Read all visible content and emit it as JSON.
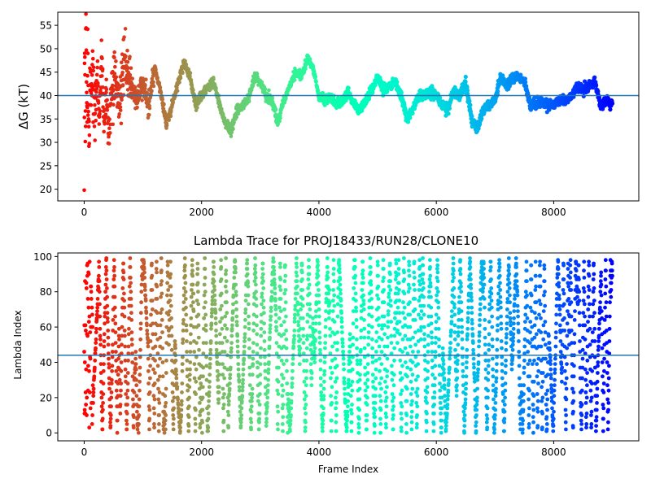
{
  "chart_data": [
    {
      "type": "scatter",
      "title": "",
      "xlabel": "",
      "ylabel": "ΔG (kT)",
      "xlim": [
        -450,
        9450
      ],
      "ylim": [
        17.5,
        57.8
      ],
      "xticks": [
        0,
        2000,
        4000,
        6000,
        8000
      ],
      "yticks": [
        20,
        25,
        30,
        35,
        40,
        45,
        50,
        55
      ],
      "hline": 40,
      "hline_color": "#1f77b4",
      "colormap": "rainbow (reversed: red at frame 0, violet at last frame)",
      "frames": [
        0,
        9000
      ],
      "trace_anchor_points": [
        [
          0,
          20
        ],
        [
          10,
          52
        ],
        [
          20,
          30
        ],
        [
          30,
          56
        ],
        [
          40,
          40
        ],
        [
          50,
          35
        ],
        [
          60,
          48
        ],
        [
          80,
          25
        ],
        [
          100,
          42
        ],
        [
          120,
          38
        ],
        [
          150,
          46
        ],
        [
          180,
          34
        ],
        [
          220,
          44
        ],
        [
          260,
          36
        ],
        [
          300,
          48
        ],
        [
          340,
          33
        ],
        [
          380,
          42
        ],
        [
          420,
          29
        ],
        [
          460,
          41
        ],
        [
          520,
          45
        ],
        [
          600,
          38
        ],
        [
          700,
          47
        ],
        [
          800,
          42
        ],
        [
          900,
          39
        ],
        [
          1000,
          43
        ],
        [
          1100,
          38
        ],
        [
          1200,
          46
        ],
        [
          1300,
          41
        ],
        [
          1400,
          34
        ],
        [
          1500,
          38
        ],
        [
          1600,
          43
        ],
        [
          1700,
          47
        ],
        [
          1800,
          44
        ],
        [
          1900,
          38
        ],
        [
          2000,
          40
        ],
        [
          2200,
          43
        ],
        [
          2400,
          34
        ],
        [
          2500,
          32
        ],
        [
          2600,
          37
        ],
        [
          2800,
          39
        ],
        [
          2900,
          44
        ],
        [
          3000,
          43
        ],
        [
          3100,
          40
        ],
        [
          3200,
          39
        ],
        [
          3300,
          34
        ],
        [
          3400,
          39
        ],
        [
          3500,
          42
        ],
        [
          3600,
          45
        ],
        [
          3700,
          44
        ],
        [
          3800,
          48
        ],
        [
          3900,
          46
        ],
        [
          4000,
          40
        ],
        [
          4100,
          39
        ],
        [
          4200,
          40
        ],
        [
          4300,
          38
        ],
        [
          4400,
          39
        ],
        [
          4500,
          41
        ],
        [
          4600,
          38
        ],
        [
          4700,
          37
        ],
        [
          4800,
          39
        ],
        [
          4900,
          41
        ],
        [
          5000,
          44
        ],
        [
          5100,
          41
        ],
        [
          5200,
          42
        ],
        [
          5300,
          43
        ],
        [
          5400,
          40
        ],
        [
          5500,
          35
        ],
        [
          5600,
          37
        ],
        [
          5700,
          40
        ],
        [
          5800,
          40
        ],
        [
          5900,
          41
        ],
        [
          6000,
          40
        ],
        [
          6100,
          38
        ],
        [
          6200,
          37
        ],
        [
          6300,
          41
        ],
        [
          6400,
          40
        ],
        [
          6500,
          43
        ],
        [
          6600,
          35
        ],
        [
          6700,
          33
        ],
        [
          6800,
          37
        ],
        [
          6900,
          38
        ],
        [
          7000,
          39
        ],
        [
          7100,
          44
        ],
        [
          7200,
          42
        ],
        [
          7300,
          44
        ],
        [
          7400,
          44
        ],
        [
          7500,
          43
        ],
        [
          7600,
          38
        ],
        [
          7700,
          38
        ],
        [
          7800,
          39
        ],
        [
          7900,
          38
        ],
        [
          8000,
          38
        ],
        [
          8100,
          39
        ],
        [
          8200,
          39
        ],
        [
          8300,
          40
        ],
        [
          8400,
          42
        ],
        [
          8500,
          41
        ],
        [
          8600,
          42
        ],
        [
          8700,
          43
        ],
        [
          8800,
          38
        ],
        [
          8900,
          39
        ],
        [
          9000,
          38
        ]
      ]
    },
    {
      "type": "scatter",
      "title": "Lambda Trace for PROJ18433/RUN28/CLONE10",
      "xlabel": "Frame Index",
      "ylabel": "Lambda Index",
      "xlim": [
        -450,
        9450
      ],
      "ylim": [
        -4.5,
        102
      ],
      "xticks": [
        0,
        2000,
        4000,
        6000,
        8000
      ],
      "yticks": [
        0,
        20,
        40,
        60,
        80,
        100
      ],
      "hline": 44,
      "hline_color": "#1f77b4",
      "colormap": "rainbow (reversed: red at frame 0, violet at last frame)",
      "lambda_range": [
        0,
        99
      ],
      "frames": [
        0,
        9000
      ]
    }
  ]
}
